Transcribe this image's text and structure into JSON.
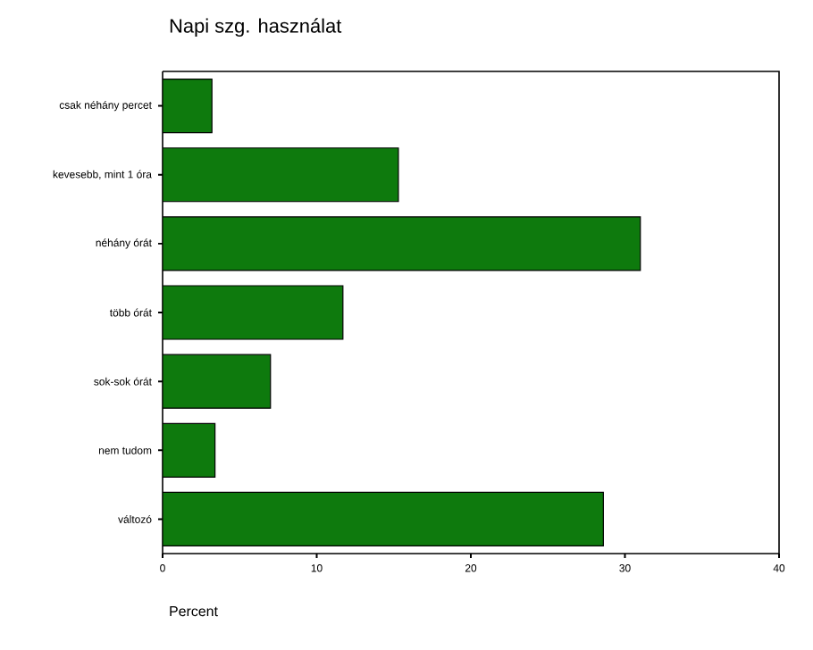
{
  "chart_data": {
    "type": "bar",
    "orientation": "horizontal",
    "title": "Napi szg. használat",
    "xlabel": "Percent",
    "categories": [
      "csak néhány percet",
      "kevesebb, mint 1 óra",
      "néhány órát",
      "több órát",
      "sok-sok órát",
      "nem tudom",
      "változó"
    ],
    "values": [
      3.2,
      15.3,
      31.0,
      11.7,
      7.0,
      3.4,
      28.6
    ],
    "color": "#0e7a0d",
    "xlim": [
      0,
      40
    ],
    "xticks": [
      0,
      10,
      20,
      30,
      40
    ]
  }
}
